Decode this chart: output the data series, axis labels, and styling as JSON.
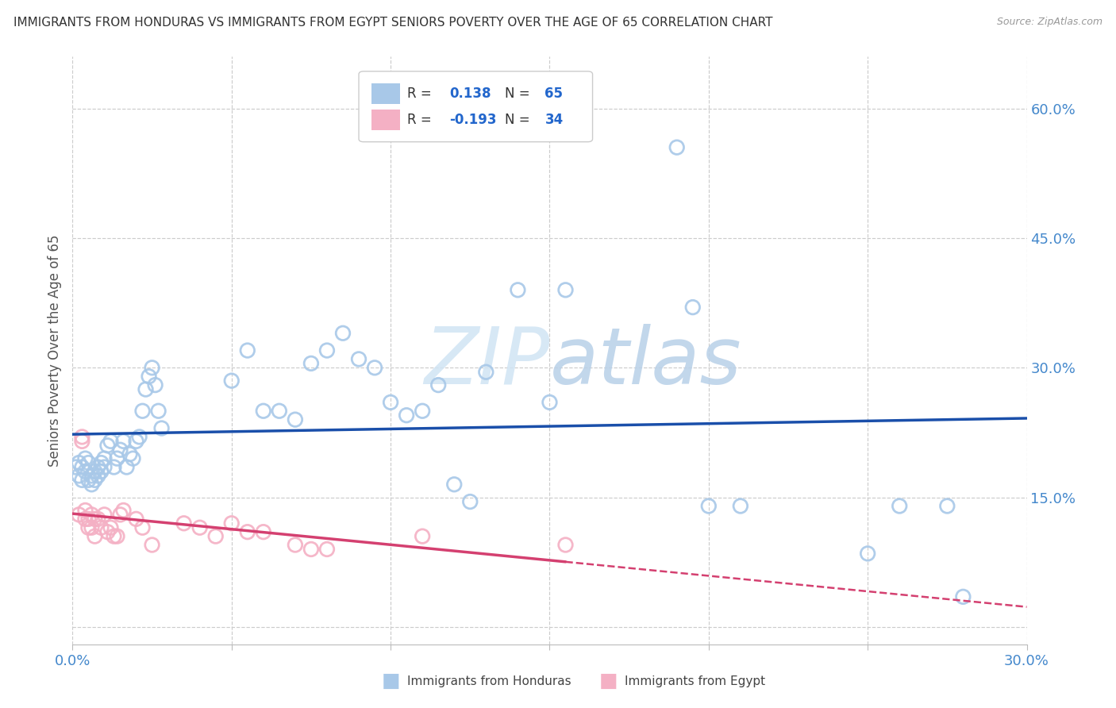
{
  "title": "IMMIGRANTS FROM HONDURAS VS IMMIGRANTS FROM EGYPT SENIORS POVERTY OVER THE AGE OF 65 CORRELATION CHART",
  "source": "Source: ZipAtlas.com",
  "ylabel": "Seniors Poverty Over the Age of 65",
  "xlim": [
    0.0,
    0.3
  ],
  "ylim": [
    -0.02,
    0.66
  ],
  "yticks_right": [
    0.0,
    0.15,
    0.3,
    0.45,
    0.6
  ],
  "ytick_labels_right": [
    "",
    "15.0%",
    "30.0%",
    "45.0%",
    "60.0%"
  ],
  "xticks": [
    0.0,
    0.05,
    0.1,
    0.15,
    0.2,
    0.25,
    0.3
  ],
  "xtick_labels": [
    "0.0%",
    "",
    "",
    "",
    "",
    "",
    "30.0%"
  ],
  "honduras_color": "#a8c8e8",
  "egypt_color": "#f4b0c4",
  "honduras_line_color": "#1a4faa",
  "egypt_line_color": "#d44070",
  "R_honduras": 0.138,
  "N_honduras": 65,
  "R_egypt": -0.193,
  "N_egypt": 34,
  "background_color": "#ffffff",
  "grid_color": "#cccccc",
  "watermark_color": "#d0e4f4",
  "right_axis_color": "#4488cc",
  "legend_value_color": "#2266cc",
  "title_fontsize": 11,
  "honduras_x": [
    0.001,
    0.002,
    0.002,
    0.003,
    0.003,
    0.004,
    0.004,
    0.005,
    0.005,
    0.006,
    0.006,
    0.007,
    0.007,
    0.008,
    0.008,
    0.009,
    0.009,
    0.01,
    0.01,
    0.011,
    0.012,
    0.013,
    0.014,
    0.015,
    0.016,
    0.017,
    0.018,
    0.019,
    0.02,
    0.021,
    0.022,
    0.023,
    0.024,
    0.025,
    0.026,
    0.027,
    0.028,
    0.05,
    0.055,
    0.06,
    0.065,
    0.07,
    0.075,
    0.08,
    0.085,
    0.09,
    0.095,
    0.1,
    0.105,
    0.11,
    0.115,
    0.12,
    0.125,
    0.13,
    0.14,
    0.15,
    0.155,
    0.19,
    0.195,
    0.2,
    0.21,
    0.25,
    0.26,
    0.275,
    0.28
  ],
  "honduras_y": [
    0.185,
    0.19,
    0.175,
    0.185,
    0.17,
    0.195,
    0.18,
    0.19,
    0.17,
    0.175,
    0.165,
    0.18,
    0.17,
    0.185,
    0.175,
    0.19,
    0.18,
    0.195,
    0.185,
    0.21,
    0.215,
    0.185,
    0.195,
    0.205,
    0.215,
    0.185,
    0.2,
    0.195,
    0.215,
    0.22,
    0.25,
    0.275,
    0.29,
    0.3,
    0.28,
    0.25,
    0.23,
    0.285,
    0.32,
    0.25,
    0.25,
    0.24,
    0.305,
    0.32,
    0.34,
    0.31,
    0.3,
    0.26,
    0.245,
    0.25,
    0.28,
    0.165,
    0.145,
    0.295,
    0.39,
    0.26,
    0.39,
    0.555,
    0.37,
    0.14,
    0.14,
    0.085,
    0.14,
    0.14,
    0.035
  ],
  "egypt_x": [
    0.002,
    0.003,
    0.003,
    0.004,
    0.004,
    0.005,
    0.005,
    0.006,
    0.006,
    0.007,
    0.007,
    0.008,
    0.009,
    0.01,
    0.011,
    0.012,
    0.013,
    0.014,
    0.015,
    0.016,
    0.02,
    0.022,
    0.025,
    0.035,
    0.04,
    0.045,
    0.05,
    0.055,
    0.06,
    0.07,
    0.075,
    0.08,
    0.11,
    0.155
  ],
  "egypt_y": [
    0.13,
    0.22,
    0.215,
    0.125,
    0.135,
    0.125,
    0.115,
    0.13,
    0.115,
    0.125,
    0.105,
    0.125,
    0.115,
    0.13,
    0.11,
    0.115,
    0.105,
    0.105,
    0.13,
    0.135,
    0.125,
    0.115,
    0.095,
    0.12,
    0.115,
    0.105,
    0.12,
    0.11,
    0.11,
    0.095,
    0.09,
    0.09,
    0.105,
    0.095
  ]
}
